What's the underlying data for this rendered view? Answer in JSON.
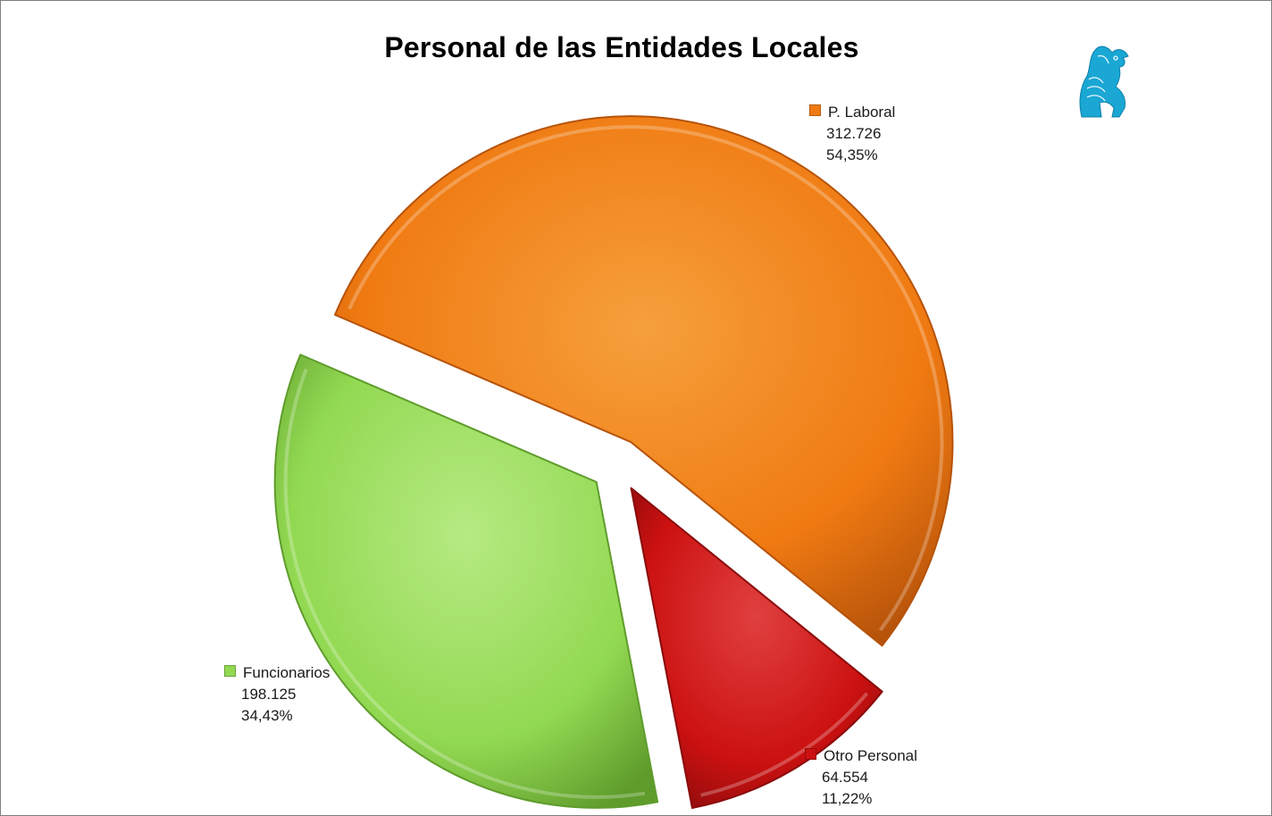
{
  "chart_data": {
    "type": "pie",
    "title": "Personal de las Entidades Locales",
    "slices": [
      {
        "name": "P. Laboral",
        "value": 312726,
        "value_label": "312.726",
        "percent_label": "54,35%",
        "color": "#f07a12",
        "color_light": "#f5a03c",
        "color_dark": "#b6530a"
      },
      {
        "name": "Otro Personal",
        "value": 64554,
        "value_label": "64.554",
        "percent_label": "11,22%",
        "color": "#cc1111",
        "color_light": "#e04040",
        "color_dark": "#8a0b0b"
      },
      {
        "name": "Funcionarios",
        "value": 198125,
        "value_label": "198.125",
        "percent_label": "34,43%",
        "color": "#92d952",
        "color_light": "#b6ea82",
        "color_dark": "#5f9c2c"
      }
    ],
    "exploded": true,
    "legend": "data-labels-outside"
  },
  "logo": {
    "icon": "griffin-logo-icon",
    "color": "#1aa7d4"
  }
}
